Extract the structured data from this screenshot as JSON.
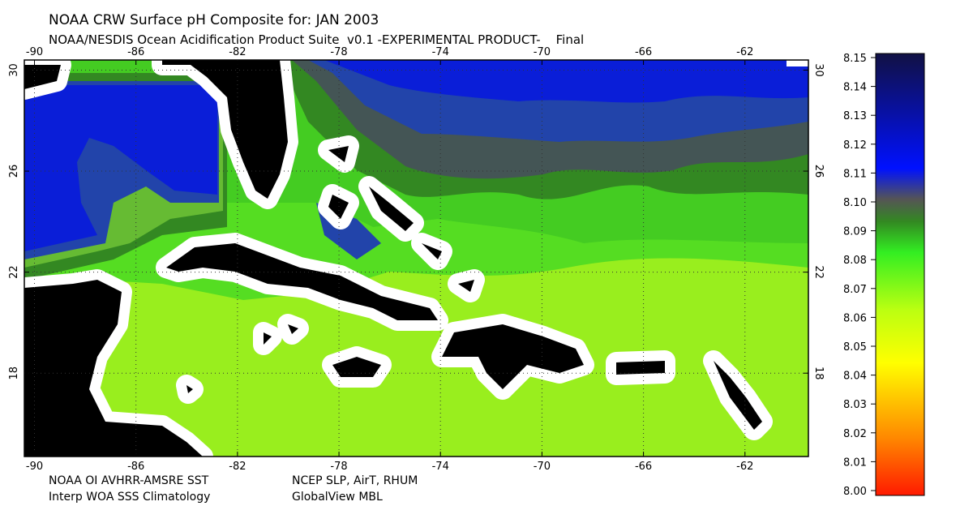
{
  "header": {
    "title": "NOAA CRW Surface pH Composite for: JAN 2003",
    "subtitle": "NOAA/NESDIS Ocean Acidification Product Suite  v0.1 -EXPERIMENTAL PRODUCT-    Final"
  },
  "map": {
    "type": "map",
    "xlim": [
      -90.4,
      -59.5
    ],
    "ylim": [
      14.7,
      30.4
    ],
    "xticks": [
      -90,
      -86,
      -82,
      -78,
      -74,
      -70,
      -66,
      -62
    ],
    "yticks": [
      18,
      22,
      26,
      30
    ],
    "grid": true
  },
  "colorbar": {
    "lim": [
      8.0,
      8.15
    ],
    "ticks": [
      {
        "value": 8.0,
        "label": "8.00"
      },
      8.01,
      8.02,
      8.03,
      8.04,
      8.05,
      8.06,
      8.07,
      8.08,
      8.09,
      {
        "value": 8.1,
        "label": "8.10"
      },
      8.11,
      8.12,
      8.13,
      8.14,
      8.15
    ]
  },
  "footer": [
    "NOAA OI AVHRR-AMSRE SST",
    "NCEP SLP, AirT, RHUM",
    "Interp WOA SSS Climatology",
    "GlobalView MBL"
  ]
}
